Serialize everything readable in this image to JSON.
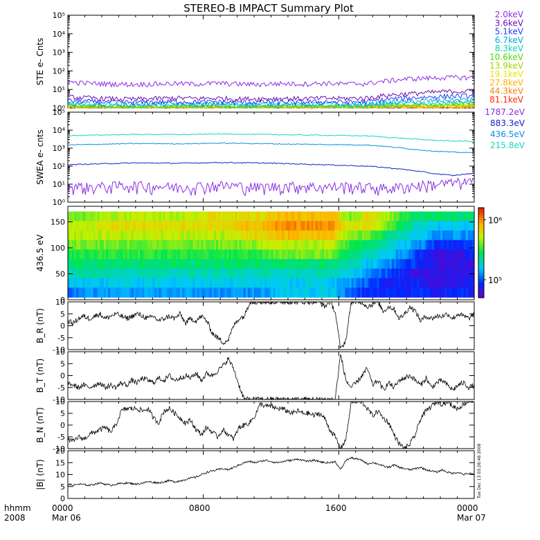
{
  "title": "STEREO-B IMPACT Summary Plot",
  "x_axis": {
    "tick_labels": [
      "0000",
      "0800",
      "1600",
      "0000"
    ],
    "date_labels": [
      "Mar 06",
      "Mar 07"
    ],
    "corner_label_top": "hhmm",
    "corner_label_bottom": "2008"
  },
  "stamp": "Tue Dec 13 03:26:48 2008",
  "colors": {
    "ste": [
      "#8a2be2",
      "#6a0dad",
      "#1e3cff",
      "#00a8e8",
      "#00d5b0",
      "#4cd600",
      "#9ad400",
      "#e6e600",
      "#ffb000",
      "#ff7f00",
      "#ff2a00"
    ],
    "swea": [
      "#8a2be2",
      "#1020c8",
      "#0b8ee0",
      "#14d6c0"
    ]
  },
  "chart_data": [
    {
      "type": "line",
      "title": "",
      "ylabel": "STE e- Cnts",
      "y_scale": "log",
      "ylim": [
        1,
        100000
      ],
      "y_ticks": [
        "10⁰",
        "10¹",
        "10²",
        "10³",
        "10⁴",
        "10⁵"
      ],
      "series": [
        {
          "name": "2.0keV",
          "values": [
            25,
            22,
            20,
            19,
            20,
            21,
            20,
            22,
            20,
            19,
            21,
            20,
            22,
            20,
            21,
            30,
            38,
            42,
            45,
            44
          ]
        },
        {
          "name": "3.6keV",
          "values": [
            4,
            3.5,
            3.2,
            3,
            3.2,
            3.5,
            3.3,
            3.4,
            3.1,
            3.2,
            3.3,
            3.2,
            3.4,
            3.3,
            3.5,
            5,
            6,
            7,
            8,
            8
          ]
        },
        {
          "name": "5.1keV",
          "values": [
            2.5,
            2.3,
            2.1,
            2.0,
            2.1,
            2.2,
            2.1,
            2.2,
            2.0,
            2.1,
            2.2,
            2.1,
            2.2,
            2.1,
            2.2,
            3.0,
            3.5,
            4,
            4.5,
            4.5
          ]
        },
        {
          "name": "6.7keV",
          "values": [
            1.8,
            1.7,
            1.6,
            1.6,
            1.7,
            1.7,
            1.6,
            1.7,
            1.6,
            1.6,
            1.7,
            1.6,
            1.7,
            1.6,
            1.7,
            2.0,
            2.3,
            2.5,
            2.7,
            2.8
          ]
        },
        {
          "name": "8.3keV",
          "values": [
            1.5,
            1.4,
            1.4,
            1.3,
            1.4,
            1.4,
            1.4,
            1.4,
            1.3,
            1.4,
            1.4,
            1.4,
            1.4,
            1.4,
            1.4,
            1.6,
            1.8,
            1.9,
            2.0,
            2.1
          ]
        },
        {
          "name": "10.6keV",
          "values": [
            1.3,
            1.3,
            1.2,
            1.2,
            1.2,
            1.3,
            1.2,
            1.3,
            1.2,
            1.2,
            1.3,
            1.2,
            1.3,
            1.2,
            1.3,
            1.4,
            1.5,
            1.6,
            1.7,
            1.7
          ]
        },
        {
          "name": "13.9keV",
          "values": [
            1.2,
            1.2,
            1.1,
            1.1,
            1.1,
            1.2,
            1.1,
            1.2,
            1.1,
            1.1,
            1.2,
            1.1,
            1.2,
            1.1,
            1.2,
            1.3,
            1.4,
            1.4,
            1.5,
            1.5
          ]
        },
        {
          "name": "19.1keV",
          "values": [
            1.1,
            1.1,
            1.1,
            1.05,
            1.05,
            1.1,
            1.05,
            1.1,
            1.05,
            1.05,
            1.1,
            1.05,
            1.1,
            1.05,
            1.1,
            1.2,
            1.25,
            1.3,
            1.3,
            1.3
          ]
        },
        {
          "name": "27.8keV",
          "values": [
            1.05,
            1.05,
            1.02,
            1.02,
            1.02,
            1.05,
            1.02,
            1.05,
            1.02,
            1.02,
            1.05,
            1.02,
            1.05,
            1.02,
            1.05,
            1.1,
            1.15,
            1.2,
            1.2,
            1.2
          ]
        },
        {
          "name": "44.3keV",
          "values": [
            1.02,
            1.02,
            1.01,
            1.01,
            1.01,
            1.02,
            1.01,
            1.02,
            1.01,
            1.01,
            1.02,
            1.01,
            1.02,
            1.01,
            1.02,
            1.05,
            1.08,
            1.1,
            1.1,
            1.1
          ]
        },
        {
          "name": "81.1keV",
          "values": [
            1.01,
            1.01,
            1.0,
            1.0,
            1.0,
            1.01,
            1.0,
            1.01,
            1.0,
            1.0,
            1.01,
            1.0,
            1.01,
            1.0,
            1.01,
            1.02,
            1.03,
            1.05,
            1.05,
            1.05
          ]
        }
      ]
    },
    {
      "type": "line",
      "title": "",
      "ylabel": "SWEA e- cnts",
      "y_scale": "log",
      "ylim": [
        1,
        100000
      ],
      "y_ticks": [
        "10⁰",
        "10¹",
        "10²",
        "10³",
        "10⁴",
        "10⁵"
      ],
      "series": [
        {
          "name": "1787.2eV",
          "values": [
            8,
            7,
            8,
            9,
            8,
            7,
            8,
            9,
            8,
            7,
            8,
            8,
            7,
            8,
            7,
            6,
            8,
            10,
            12,
            14
          ]
        },
        {
          "name": "883.3eV",
          "values": [
            120,
            130,
            140,
            150,
            150,
            145,
            150,
            160,
            155,
            150,
            140,
            130,
            120,
            110,
            100,
            80,
            60,
            40,
            30,
            40
          ]
        },
        {
          "name": "436.5eV",
          "values": [
            1500,
            1600,
            1700,
            1800,
            1800,
            1750,
            1800,
            1900,
            1850,
            1800,
            1700,
            1650,
            1600,
            1550,
            1500,
            1200,
            900,
            700,
            600,
            550
          ]
        },
        {
          "name": "215.8eV",
          "values": [
            5000,
            5200,
            5500,
            5800,
            5800,
            5700,
            5800,
            6200,
            6000,
            5800,
            5600,
            5400,
            5200,
            5000,
            4800,
            4000,
            3300,
            2800,
            2500,
            2400
          ]
        }
      ]
    },
    {
      "type": "heatmap",
      "title": "",
      "ylabel": "436.5 eV",
      "ylim": [
        0,
        180
      ],
      "y_ticks": [
        "0",
        "50",
        "100",
        "150"
      ],
      "colorbar_ticks": [
        "10⁶",
        "10⁵"
      ],
      "colorbar_range": [
        50000,
        1600000
      ],
      "description_values": {
        "time_columns": 24,
        "pitch_rows": 9,
        "z": [
          [
            5.6,
            5.7,
            5.7,
            5.6,
            5.5,
            5.4,
            5.3,
            5.2,
            5.0
          ],
          [
            5.6,
            5.7,
            5.7,
            5.6,
            5.5,
            5.4,
            5.3,
            5.2,
            5.1
          ],
          [
            5.7,
            5.8,
            5.7,
            5.6,
            5.5,
            5.4,
            5.3,
            5.2,
            5.1
          ],
          [
            5.7,
            5.8,
            5.7,
            5.6,
            5.5,
            5.4,
            5.3,
            5.2,
            5.1
          ],
          [
            5.7,
            5.8,
            5.7,
            5.6,
            5.5,
            5.4,
            5.3,
            5.2,
            5.1
          ],
          [
            5.7,
            5.8,
            5.7,
            5.6,
            5.5,
            5.4,
            5.3,
            5.2,
            5.1
          ],
          [
            5.7,
            5.8,
            5.7,
            5.6,
            5.5,
            5.4,
            5.3,
            5.2,
            5.1
          ],
          [
            5.7,
            5.8,
            5.7,
            5.6,
            5.5,
            5.4,
            5.3,
            5.2,
            5.1
          ],
          [
            5.8,
            5.8,
            5.7,
            5.6,
            5.5,
            5.4,
            5.3,
            5.2,
            5.1
          ],
          [
            5.8,
            5.8,
            5.7,
            5.6,
            5.5,
            5.4,
            5.3,
            5.2,
            5.1
          ],
          [
            5.8,
            5.9,
            5.8,
            5.6,
            5.5,
            5.4,
            5.3,
            5.2,
            5.1
          ],
          [
            5.8,
            5.9,
            5.8,
            5.7,
            5.5,
            5.4,
            5.3,
            5.2,
            5.1
          ],
          [
            5.9,
            6.0,
            5.9,
            5.7,
            5.6,
            5.4,
            5.3,
            5.2,
            5.2
          ],
          [
            5.9,
            6.0,
            5.9,
            5.7,
            5.6,
            5.4,
            5.3,
            5.2,
            5.2
          ],
          [
            5.9,
            6.0,
            5.9,
            5.7,
            5.6,
            5.4,
            5.3,
            5.2,
            5.2
          ],
          [
            5.9,
            6.0,
            5.9,
            5.7,
            5.6,
            5.4,
            5.3,
            5.2,
            5.2
          ],
          [
            5.6,
            5.7,
            5.6,
            5.5,
            5.4,
            5.3,
            5.2,
            5.1,
            5.0
          ],
          [
            5.8,
            5.8,
            5.6,
            5.4,
            5.3,
            5.2,
            5.1,
            5.0,
            4.9
          ],
          [
            5.7,
            5.6,
            5.4,
            5.3,
            5.2,
            5.1,
            5.0,
            4.9,
            4.9
          ],
          [
            5.5,
            5.4,
            5.3,
            5.2,
            5.1,
            5.0,
            4.9,
            4.9,
            4.9
          ],
          [
            5.4,
            5.3,
            5.2,
            5.1,
            4.9,
            4.9,
            4.8,
            4.9,
            4.9
          ],
          [
            5.4,
            5.2,
            5.1,
            4.9,
            4.8,
            4.8,
            4.8,
            4.8,
            4.9
          ],
          [
            5.4,
            5.2,
            5.1,
            4.9,
            4.8,
            4.8,
            4.8,
            4.8,
            4.9
          ],
          [
            5.4,
            5.2,
            5.1,
            5.0,
            4.9,
            4.8,
            4.8,
            4.9,
            4.9
          ]
        ]
      }
    },
    {
      "type": "line",
      "title": "",
      "ylabel": "B_R (nT)",
      "ylim": [
        -10,
        10
      ],
      "y_ticks": [
        "10",
        "5",
        "0",
        "-5",
        "-10"
      ],
      "values": [
        2,
        1,
        3,
        4,
        3,
        4,
        5,
        3,
        4,
        5,
        4,
        3,
        4,
        5,
        4,
        3,
        4,
        2,
        3,
        4,
        3,
        5,
        1,
        3,
        2,
        4,
        2,
        -3,
        -5,
        -7,
        -6,
        0,
        3,
        4,
        10,
        10,
        10,
        10,
        10,
        10,
        10,
        10,
        10,
        10,
        10,
        10,
        10,
        10,
        8,
        10,
        6,
        -10,
        -6,
        10,
        10,
        10,
        8,
        9,
        10,
        6,
        8,
        7,
        3,
        5,
        8,
        6,
        2,
        4,
        3,
        4,
        4,
        5,
        3,
        5,
        4,
        3,
        5
      ]
    },
    {
      "type": "line",
      "title": "",
      "ylabel": "B_T (nT)",
      "ylim": [
        -10,
        10
      ],
      "y_ticks": [
        "10",
        "5",
        "0",
        "-5",
        "-10"
      ],
      "values": [
        -3,
        -4,
        -5,
        -4,
        -5,
        -4,
        -3,
        -5,
        -4,
        -5,
        -3,
        -4,
        -2,
        -3,
        -1,
        -2,
        -3,
        -1,
        -2,
        0,
        -2,
        -1,
        0,
        -1,
        1,
        -2,
        1,
        0,
        2,
        4,
        7,
        3,
        -4,
        -10,
        -10,
        -10,
        -10,
        -10,
        -10,
        -10,
        -10,
        -10,
        -10,
        -10,
        -10,
        -10,
        -10,
        -10,
        -10,
        -10,
        -10,
        9,
        -2,
        -5,
        -3,
        0,
        3,
        -4,
        -2,
        -6,
        -3,
        -5,
        -2,
        -1,
        0,
        -2,
        -4,
        -1,
        -5,
        -3,
        -2,
        -4,
        -6,
        -4,
        -3,
        -5,
        -4
      ]
    },
    {
      "type": "line",
      "title": "",
      "ylabel": "B_N (nT)",
      "ylim": [
        -10,
        10
      ],
      "y_ticks": [
        "10",
        "5",
        "0",
        "-5",
        "-10"
      ],
      "values": [
        -6,
        -7,
        -5,
        -6,
        -4,
        -3,
        -2,
        -1,
        -3,
        0,
        6,
        7,
        7,
        7,
        6,
        7,
        3,
        1,
        6,
        7,
        5,
        3,
        1,
        2,
        -2,
        -4,
        -1,
        -3,
        -5,
        -2,
        -4,
        -6,
        -1,
        0,
        1,
        4,
        9,
        8,
        8,
        7,
        7,
        6,
        5,
        6,
        5,
        5,
        4,
        5,
        3,
        -2,
        -5,
        -10,
        -6,
        10,
        10,
        10,
        7,
        4,
        6,
        3,
        1,
        -4,
        -8,
        -10,
        -8,
        -4,
        3,
        6,
        8,
        10,
        9,
        10,
        8,
        7,
        9,
        10,
        10
      ]
    },
    {
      "type": "line",
      "title": "",
      "ylabel": "|B| (nT)",
      "ylim": [
        0,
        20
      ],
      "y_ticks": [
        "20",
        "15",
        "10",
        "5",
        "0"
      ],
      "values": [
        6,
        5.5,
        6,
        5.8,
        5.5,
        6,
        6.5,
        6,
        5.5,
        6,
        6.3,
        6.5,
        6.2,
        6,
        6.5,
        7,
        6.8,
        6.5,
        7,
        7.5,
        7,
        7.3,
        8,
        8.5,
        9,
        10,
        11,
        11.5,
        12,
        12.5,
        12,
        13,
        14,
        15,
        15.5,
        15,
        15.5,
        16,
        15.5,
        15,
        15.3,
        15.8,
        16,
        16.5,
        16,
        15.5,
        16,
        15.5,
        15,
        15,
        15.5,
        12,
        16,
        17,
        16.5,
        16,
        14.5,
        15,
        14.5,
        13.5,
        13,
        14,
        13,
        12.5,
        12,
        12.5,
        13,
        12,
        11.5,
        11,
        12,
        11,
        10.5,
        11,
        10,
        10.5,
        10
      ]
    }
  ]
}
